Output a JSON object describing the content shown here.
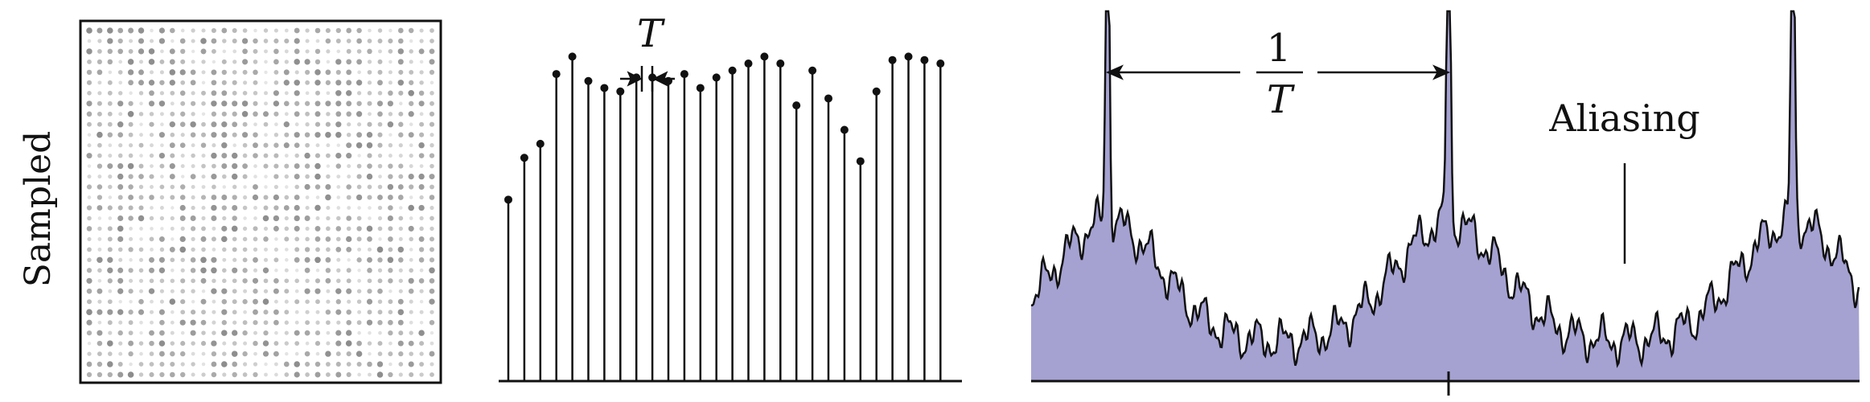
{
  "row_label": "Sampled",
  "stem_panel": {
    "period_label": "T",
    "sample_values": [
      0.52,
      0.64,
      0.68,
      0.88,
      0.93,
      0.86,
      0.84,
      0.83,
      0.87,
      0.87,
      0.86,
      0.88,
      0.84,
      0.87,
      0.89,
      0.91,
      0.93,
      0.91,
      0.79,
      0.89,
      0.81,
      0.72,
      0.63,
      0.83,
      0.92,
      0.93,
      0.92,
      0.91
    ]
  },
  "spectrum_panel": {
    "period_fraction": {
      "numerator": "1",
      "denominator": "T"
    },
    "annotation": "Aliasing",
    "fill_color": "#a5a2d2",
    "line_color": "#111111"
  },
  "sample_image": {
    "description_colors": {
      "dot_dark": "#222222",
      "dot_light": "#bdbdbd"
    }
  }
}
